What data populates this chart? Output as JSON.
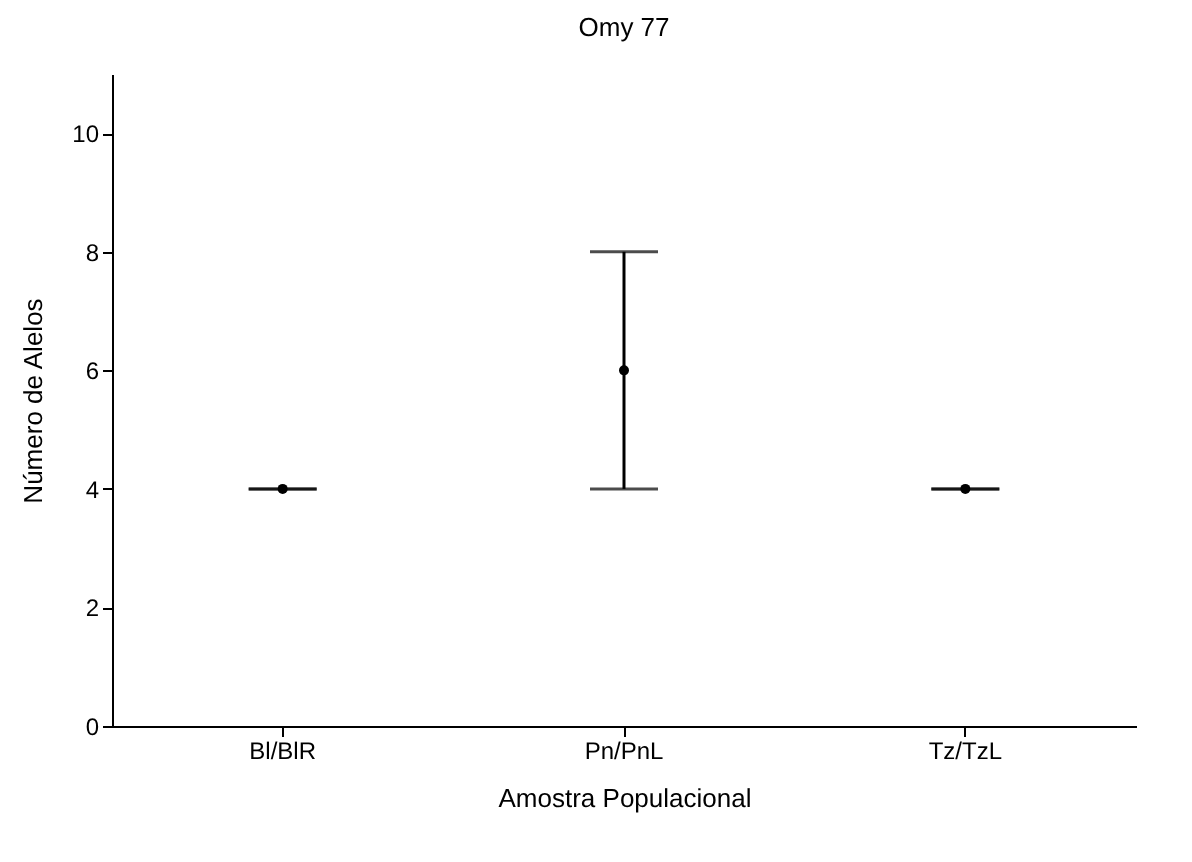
{
  "chart_data": {
    "type": "scatter",
    "title": "Omy 77",
    "xlabel": "Amostra Populacional",
    "ylabel": "Número de Alelos",
    "categories": [
      "Bl/BlR",
      "Pn/PnL",
      "Tz/TzL"
    ],
    "values": [
      4,
      6,
      4
    ],
    "errors": [
      [
        4,
        4
      ],
      [
        4,
        8
      ],
      [
        4,
        4
      ]
    ],
    "color": "#000000",
    "marker": "circle",
    "ylim": [
      0,
      11
    ],
    "yticks": [
      0,
      2,
      4,
      6,
      8,
      10
    ],
    "grid": false
  }
}
